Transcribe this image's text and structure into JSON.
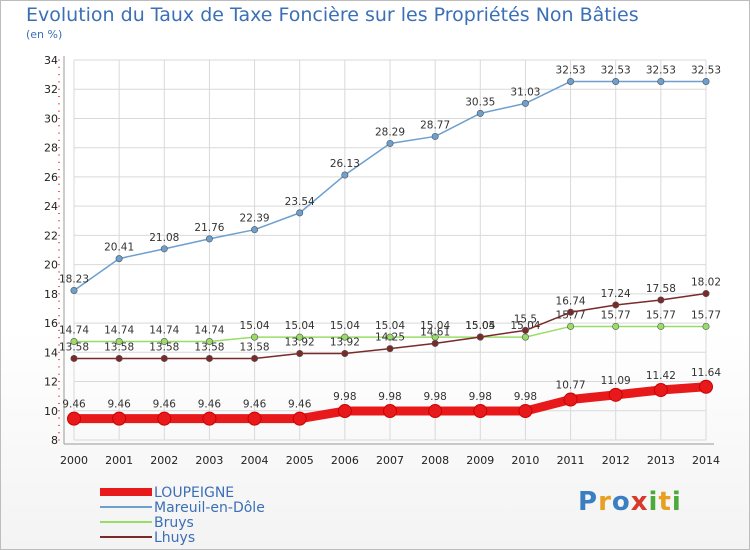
{
  "header": {
    "title": "Evolution du Taux de Taxe Foncière sur les Propriétés Non Bâties",
    "subtitle": "(en %)"
  },
  "logo": {
    "text": "Proxiti",
    "letter_colors": [
      "#3a7fc1",
      "#e8a020",
      "#3a7fc1",
      "#d63a2a",
      "#4aaa3a",
      "#e8a020",
      "#4aaa3a"
    ]
  },
  "chart_data": {
    "type": "line",
    "x": [
      2000,
      2001,
      2002,
      2003,
      2004,
      2005,
      2006,
      2007,
      2008,
      2009,
      2010,
      2011,
      2012,
      2013,
      2014
    ],
    "ylim": [
      8,
      34
    ],
    "yticks": [
      8,
      10,
      12,
      14,
      16,
      18,
      20,
      22,
      24,
      26,
      28,
      30,
      32,
      34
    ],
    "grid": true,
    "legend_position": "bottom-left",
    "series": [
      {
        "name": "LOUPEIGNE",
        "color": "#e8191b",
        "values": [
          9.46,
          9.46,
          9.46,
          9.46,
          9.46,
          9.46,
          9.98,
          9.98,
          9.98,
          9.98,
          9.98,
          10.77,
          11.09,
          11.42,
          11.64
        ]
      },
      {
        "name": "Mareuil-en-Dôle",
        "color": "#6d9fcf",
        "values": [
          18.23,
          20.41,
          21.08,
          21.76,
          22.39,
          23.54,
          26.13,
          28.29,
          28.77,
          30.35,
          31.03,
          32.53,
          32.53,
          32.53,
          32.53
        ]
      },
      {
        "name": "Bruys",
        "color": "#99dd66",
        "values": [
          14.74,
          14.74,
          14.74,
          14.74,
          15.04,
          15.04,
          15.04,
          15.04,
          15.04,
          15.04,
          15.04,
          15.77,
          15.77,
          15.77,
          15.77
        ]
      },
      {
        "name": "Lhuys",
        "color": "#7a2a2a",
        "values": [
          13.58,
          13.58,
          13.58,
          13.58,
          13.58,
          13.92,
          13.92,
          14.25,
          14.61,
          15.05,
          15.5,
          16.74,
          17.24,
          17.58,
          18.02
        ]
      }
    ]
  }
}
